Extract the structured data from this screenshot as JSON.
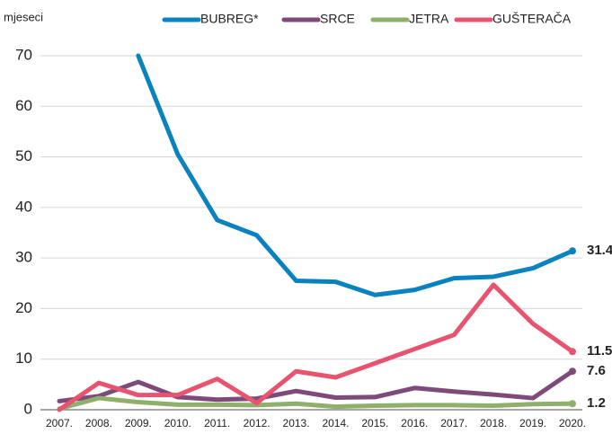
{
  "chart_data": {
    "type": "line",
    "y_label": "mjeseci",
    "categories": [
      "2007.",
      "2008.",
      "2009.",
      "2010.",
      "2011.",
      "2012.",
      "2013.",
      "2014.",
      "2015.",
      "2016.",
      "2017.",
      "2018.",
      "2019.",
      "2020."
    ],
    "series": [
      {
        "name": "BUBREG*",
        "color": "#0a82c0",
        "values": [
          null,
          null,
          70,
          50.5,
          37.5,
          34.5,
          25.5,
          25.3,
          22.7,
          23.7,
          26,
          26.3,
          28,
          31.4
        ]
      },
      {
        "name": "SRCE",
        "color": "#7d4a7a",
        "values": [
          1.7,
          2.7,
          5.5,
          2.5,
          2,
          2.2,
          3.7,
          2.4,
          2.5,
          4.3,
          3.6,
          3,
          2.3,
          7.6
        ]
      },
      {
        "name": "JETRA",
        "color": "#8fb06a",
        "values": [
          0.2,
          2.3,
          1.5,
          1,
          1,
          0.9,
          1.2,
          0.6,
          0.8,
          0.9,
          0.9,
          0.8,
          1.1,
          1.2
        ]
      },
      {
        "name": "GUŠTERAČA",
        "color": "#e8546f",
        "values": [
          0,
          5.3,
          2.9,
          2.9,
          6.1,
          1.3,
          7.6,
          6.4,
          9.2,
          12,
          14.8,
          24.7,
          17,
          11.5
        ]
      }
    ],
    "ylim": [
      0,
      70
    ],
    "yticks": [
      0,
      10,
      20,
      30,
      40,
      50,
      60,
      70
    ],
    "grid": true,
    "legend": "top"
  }
}
